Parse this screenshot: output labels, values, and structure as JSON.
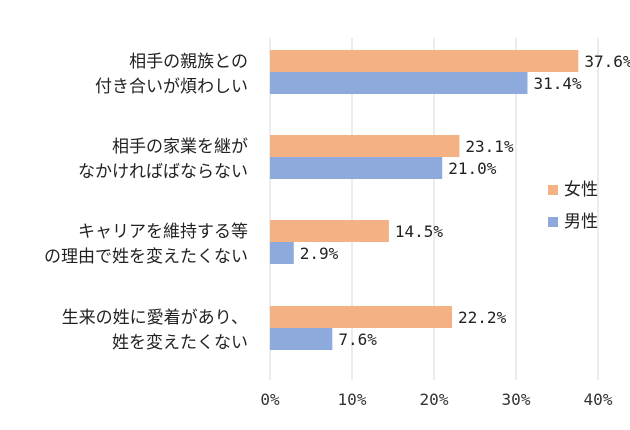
{
  "chart_data": {
    "type": "bar",
    "orientation": "horizontal",
    "categories": [
      [
        "相手の親族との",
        "付き合いが煩わしい"
      ],
      [
        "相手の家業を継が",
        "なかければばならない"
      ],
      [
        "キャリアを維持する等",
        "の理由で姓を変えたくない"
      ],
      [
        "生来の姓に愛着があり、",
        "姓を変えたくない"
      ]
    ],
    "series": [
      {
        "name": "女性",
        "color": "#F4B183",
        "values": [
          37.6,
          23.1,
          14.5,
          22.2
        ],
        "labels": [
          "37.6%",
          "23.1%",
          "14.5%",
          "22.2%"
        ]
      },
      {
        "name": "男性",
        "color": "#8EA9DB",
        "values": [
          31.4,
          21.0,
          2.9,
          7.6
        ],
        "labels": [
          "31.4%",
          "21.0%",
          "2.9%",
          "7.6%"
        ]
      }
    ],
    "xlim": [
      0,
      40
    ],
    "x_ticks": [
      0,
      10,
      20,
      30,
      40
    ],
    "x_tick_labels": [
      "0%",
      "10%",
      "20%",
      "30%",
      "40%"
    ],
    "grid": true,
    "legend_position": "right"
  }
}
